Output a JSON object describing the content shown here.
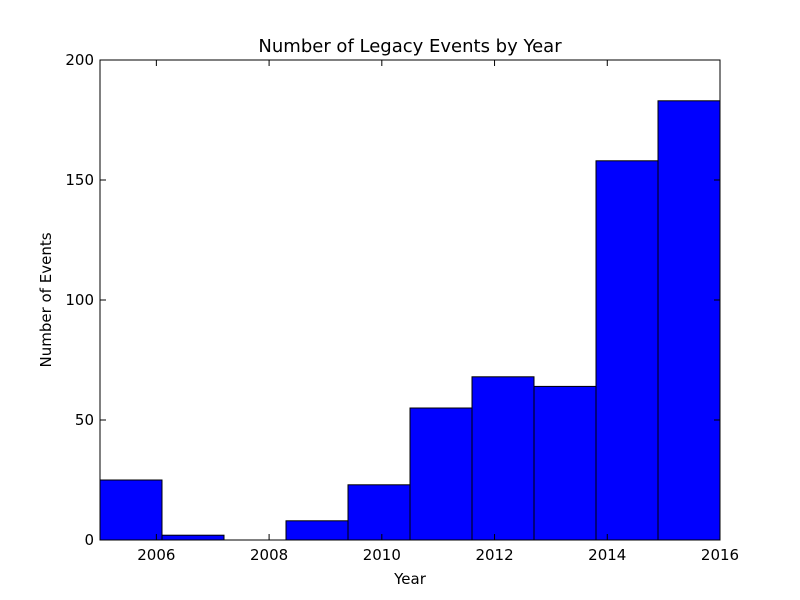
{
  "chart_data": {
    "type": "bar",
    "title": "Number of Legacy Events by Year",
    "xlabel": "Year",
    "ylabel": "Number of Events",
    "xlim": [
      2005,
      2016
    ],
    "ylim": [
      0,
      200
    ],
    "bins": [
      {
        "start": 2005.0,
        "end": 2006.1,
        "value": 25
      },
      {
        "start": 2006.1,
        "end": 2007.2,
        "value": 2
      },
      {
        "start": 2007.2,
        "end": 2008.3,
        "value": 0
      },
      {
        "start": 2008.3,
        "end": 2009.4,
        "value": 8
      },
      {
        "start": 2009.4,
        "end": 2010.5,
        "value": 23
      },
      {
        "start": 2010.5,
        "end": 2011.6,
        "value": 55
      },
      {
        "start": 2011.6,
        "end": 2012.7,
        "value": 68
      },
      {
        "start": 2012.7,
        "end": 2013.8,
        "value": 64
      },
      {
        "start": 2013.8,
        "end": 2014.9,
        "value": 158
      },
      {
        "start": 2014.9,
        "end": 2016.0,
        "value": 183
      }
    ],
    "x_ticks": [
      "2006",
      "2008",
      "2010",
      "2012",
      "2014",
      "2016"
    ],
    "y_ticks": [
      "0",
      "50",
      "100",
      "150",
      "200"
    ],
    "bar_color": "#0000ff",
    "edge_color": "#000000",
    "grid": false,
    "legend": "none"
  }
}
